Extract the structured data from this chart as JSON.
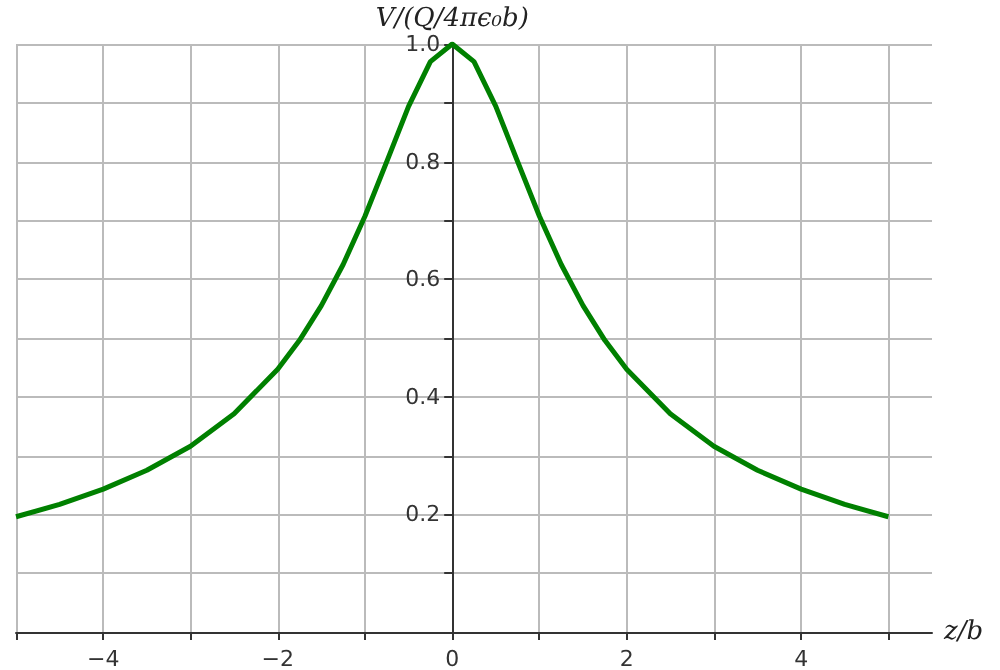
{
  "chart_data": {
    "type": "line",
    "xlabel": "z/b",
    "ylabel": "V/(Q/4πϵ₀b)",
    "x": [
      -5,
      -4.5,
      -4,
      -3.5,
      -3,
      -2.5,
      -2,
      -1.75,
      -1.5,
      -1.25,
      -1,
      -0.75,
      -0.5,
      -0.25,
      0,
      0.25,
      0.5,
      0.75,
      1,
      1.25,
      1.5,
      1.75,
      2,
      2.5,
      3,
      3.5,
      4,
      4.5,
      5
    ],
    "series": [
      {
        "color": "#008000",
        "values": [
          0.196,
          0.217,
          0.243,
          0.275,
          0.316,
          0.371,
          0.447,
          0.496,
          0.555,
          0.625,
          0.707,
          0.8,
          0.894,
          0.97,
          1,
          0.97,
          0.894,
          0.8,
          0.707,
          0.625,
          0.555,
          0.496,
          0.447,
          0.371,
          0.316,
          0.275,
          0.243,
          0.217,
          0.196
        ]
      }
    ],
    "xlim": [
      -5,
      5.5
    ],
    "xticks": [
      {
        "value": -5,
        "label": null
      },
      {
        "value": -4,
        "label": "−4"
      },
      {
        "value": -3,
        "label": null
      },
      {
        "value": -2,
        "label": "−2"
      },
      {
        "value": -1,
        "label": null
      },
      0,
      {
        "value": 1,
        "label": null
      },
      2,
      {
        "value": 3,
        "label": null
      },
      4,
      {
        "value": 5,
        "label": null
      }
    ],
    "ylim": [
      0,
      1
    ],
    "yticks": [
      {
        "value": 0,
        "label": null
      },
      {
        "value": 0.1,
        "label": null
      },
      0.2,
      {
        "value": 0.3,
        "label": null
      },
      0.4,
      {
        "value": 0.5,
        "label": null
      },
      0.6,
      {
        "value": 0.7,
        "label": null
      },
      0.8,
      {
        "value": 0.9,
        "label": null
      },
      {
        "value": 1,
        "label": "1.0"
      }
    ],
    "grid": true,
    "marker": "none",
    "line_style": "solid"
  }
}
